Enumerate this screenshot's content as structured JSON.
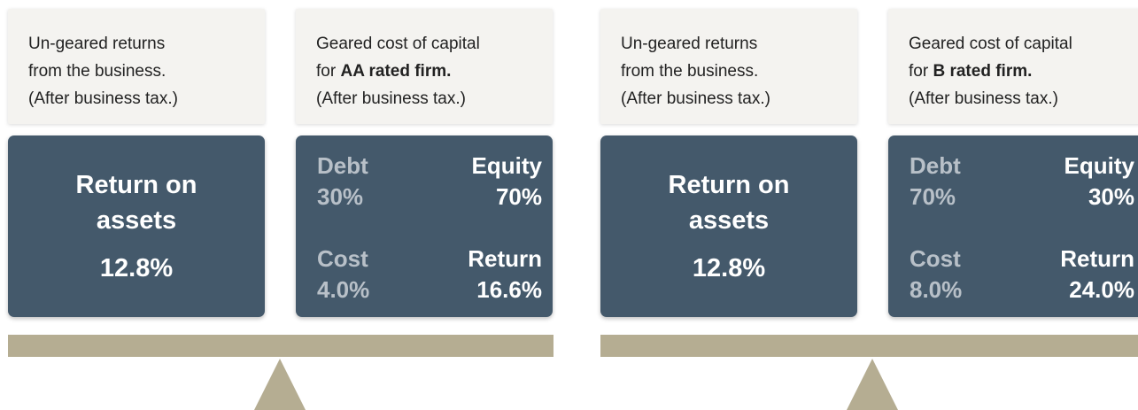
{
  "scales": [
    {
      "left": {
        "caption": [
          "Un-geared returns",
          "from the business.",
          "(After business tax.)"
        ],
        "heading": "Return on assets",
        "value": "12.8%"
      },
      "right": {
        "caption_line1": "Geared cost of capital",
        "caption_prefix": "for",
        "firm": "AA rated firm.",
        "caption_line3": "(After business tax.)",
        "debt_label": "Debt",
        "debt_value": "30%",
        "equity_label": "Equity",
        "equity_value": "70%",
        "cost_label": "Cost",
        "cost_value": "4.0%",
        "return_label": "Return",
        "return_value": "16.6%"
      }
    },
    {
      "left": {
        "caption": [
          "Un-geared returns",
          "from the business.",
          "(After business tax.)"
        ],
        "heading": "Return on assets",
        "value": "12.8%"
      },
      "right": {
        "caption_line1": "Geared cost of capital",
        "caption_prefix": "for",
        "firm": "B rated firm.",
        "caption_line3": "(After business tax.)",
        "debt_label": "Debt",
        "debt_value": "70%",
        "equity_label": "Equity",
        "equity_value": "30%",
        "cost_label": "Cost",
        "cost_value": "8.0%",
        "return_label": "Return",
        "return_value": "24.0%"
      }
    }
  ]
}
